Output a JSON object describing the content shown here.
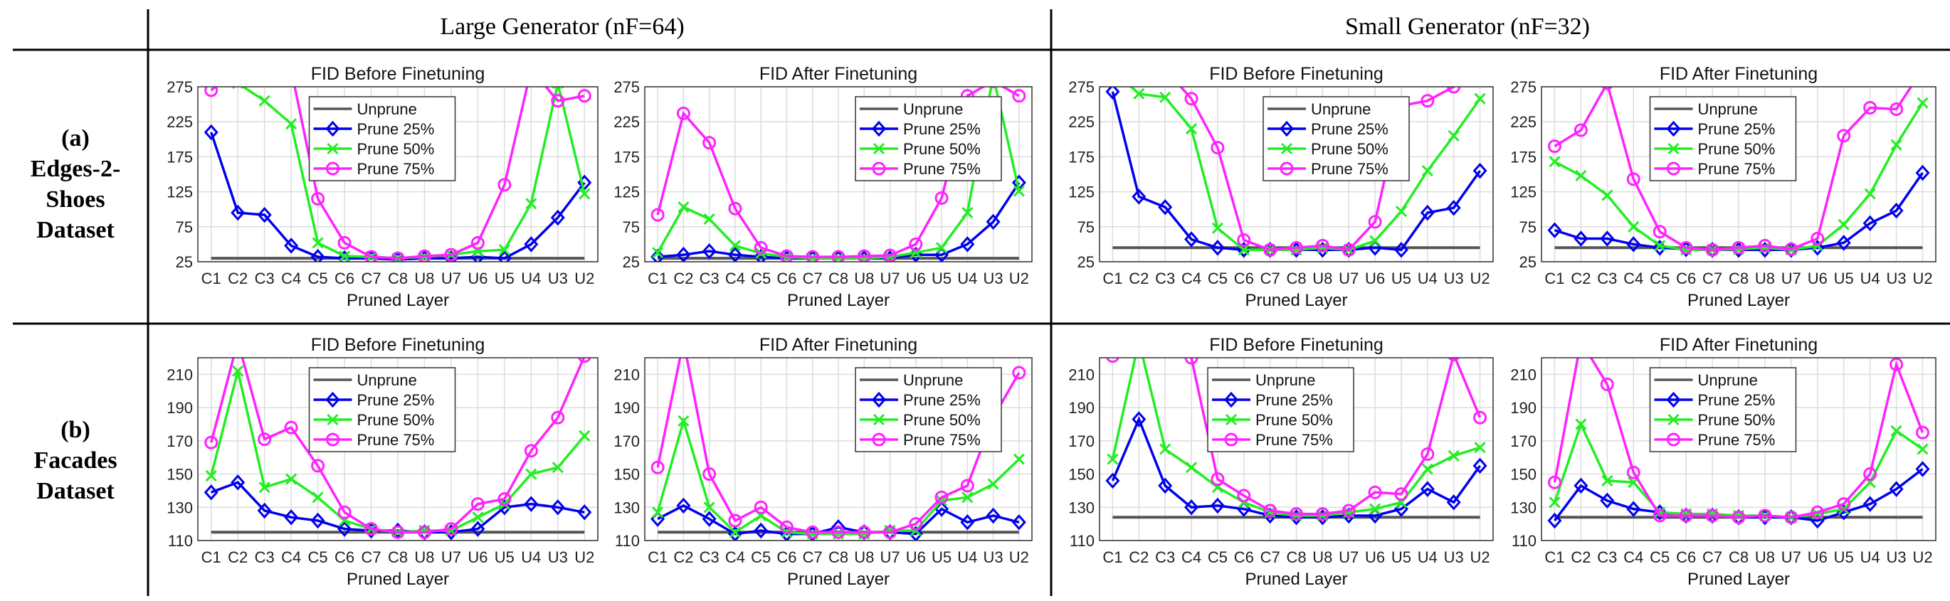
{
  "figure": {
    "columns": [
      {
        "label": "Large Generator (nF=64)"
      },
      {
        "label": "Small Generator (nF=32)"
      }
    ],
    "rows": [
      {
        "letter": "(a)",
        "lines": [
          "Edges-2-",
          "Shoes",
          "Dataset"
        ]
      },
      {
        "letter": "(b)",
        "lines": [
          "Facades",
          "Dataset"
        ]
      }
    ]
  },
  "colors": {
    "Unprune": "#555555",
    "Prune 25%": "#0000ee",
    "Prune 50%": "#22ee22",
    "Prune 75%": "#ff22ff",
    "grid": "#dddddd"
  },
  "chart_data": [
    {
      "id": "a-large-before",
      "type": "line",
      "title": "FID Before Finetuning",
      "xlabel": "Pruned Layer",
      "categories": [
        "C1",
        "C2",
        "C3",
        "C4",
        "C5",
        "C6",
        "C7",
        "C8",
        "U8",
        "U7",
        "U6",
        "U5",
        "U4",
        "U3",
        "U2"
      ],
      "ylim": [
        25,
        275
      ],
      "yticks": [
        25,
        75,
        125,
        175,
        225,
        275
      ],
      "legend": "top-center",
      "series": [
        {
          "name": "Unprune",
          "marker": "none",
          "values": [
            30,
            30,
            30,
            30,
            30,
            30,
            30,
            30,
            30,
            30,
            30,
            30,
            30,
            30,
            30
          ]
        },
        {
          "name": "Prune 25%",
          "marker": "diamond",
          "values": [
            210,
            95,
            92,
            48,
            32,
            30,
            30,
            28,
            30,
            30,
            32,
            30,
            50,
            88,
            138
          ]
        },
        {
          "name": "Prune 50%",
          "marker": "x",
          "values": [
            295,
            280,
            255,
            222,
            52,
            33,
            32,
            30,
            32,
            35,
            40,
            42,
            108,
            280,
            122
          ]
        },
        {
          "name": "Prune 75%",
          "marker": "circle",
          "values": [
            270,
            300,
            300,
            300,
            115,
            52,
            32,
            30,
            33,
            35,
            52,
            135,
            300,
            255,
            262
          ]
        }
      ]
    },
    {
      "id": "a-large-after",
      "type": "line",
      "title": "FID After Finetuning",
      "xlabel": "Pruned Layer",
      "categories": [
        "C1",
        "C2",
        "C3",
        "C4",
        "C5",
        "C6",
        "C7",
        "C8",
        "U8",
        "U7",
        "U6",
        "U5",
        "U4",
        "U3",
        "U2"
      ],
      "ylim": [
        25,
        275
      ],
      "yticks": [
        25,
        75,
        125,
        175,
        225,
        275
      ],
      "legend": "top-right",
      "series": [
        {
          "name": "Unprune",
          "marker": "none",
          "values": [
            30,
            30,
            30,
            30,
            30,
            30,
            30,
            30,
            30,
            30,
            30,
            30,
            30,
            30,
            30
          ]
        },
        {
          "name": "Prune 25%",
          "marker": "diamond",
          "values": [
            32,
            35,
            40,
            35,
            32,
            30,
            30,
            30,
            30,
            30,
            35,
            35,
            50,
            82,
            138
          ]
        },
        {
          "name": "Prune 50%",
          "marker": "x",
          "values": [
            38,
            103,
            86,
            48,
            37,
            32,
            30,
            30,
            30,
            32,
            38,
            45,
            95,
            290,
            126
          ]
        },
        {
          "name": "Prune 75%",
          "marker": "circle",
          "values": [
            92,
            237,
            195,
            101,
            45,
            33,
            32,
            32,
            33,
            34,
            50,
            116,
            262,
            283,
            262
          ]
        }
      ]
    },
    {
      "id": "a-small-before",
      "type": "line",
      "title": "FID Before Finetuning",
      "xlabel": "Pruned Layer",
      "categories": [
        "C1",
        "C2",
        "C3",
        "C4",
        "C5",
        "C6",
        "C7",
        "C8",
        "U8",
        "U7",
        "U6",
        "U5",
        "U4",
        "U3",
        "U2"
      ],
      "ylim": [
        25,
        275
      ],
      "yticks": [
        25,
        75,
        125,
        175,
        225,
        275
      ],
      "legend": "top-left",
      "series": [
        {
          "name": "Unprune",
          "marker": "none",
          "values": [
            45,
            45,
            45,
            45,
            45,
            45,
            45,
            45,
            45,
            45,
            45,
            45,
            45,
            45,
            45
          ]
        },
        {
          "name": "Prune 25%",
          "marker": "diamond",
          "values": [
            268,
            118,
            103,
            57,
            45,
            42,
            42,
            42,
            42,
            42,
            45,
            42,
            95,
            102,
            155
          ]
        },
        {
          "name": "Prune 50%",
          "marker": "x",
          "values": [
            298,
            265,
            260,
            215,
            73,
            42,
            42,
            42,
            45,
            42,
            55,
            97,
            155,
            205,
            258
          ]
        },
        {
          "name": "Prune 75%",
          "marker": "circle",
          "values": [
            300,
            300,
            300,
            258,
            188,
            56,
            42,
            45,
            48,
            42,
            82,
            248,
            255,
            275,
            300
          ]
        }
      ]
    },
    {
      "id": "a-small-after",
      "type": "line",
      "title": "FID After Finetuning",
      "xlabel": "Pruned Layer",
      "categories": [
        "C1",
        "C2",
        "C3",
        "C4",
        "C5",
        "C6",
        "C7",
        "C8",
        "U8",
        "U7",
        "U6",
        "U5",
        "U4",
        "U3",
        "U2"
      ],
      "ylim": [
        25,
        275
      ],
      "yticks": [
        25,
        75,
        125,
        175,
        225,
        275
      ],
      "legend": "top-center",
      "series": [
        {
          "name": "Unprune",
          "marker": "none",
          "values": [
            45,
            45,
            45,
            45,
            45,
            45,
            45,
            45,
            45,
            45,
            45,
            45,
            45,
            45,
            45
          ]
        },
        {
          "name": "Prune 25%",
          "marker": "diamond",
          "values": [
            70,
            58,
            58,
            50,
            45,
            43,
            42,
            42,
            42,
            42,
            45,
            52,
            80,
            98,
            152
          ]
        },
        {
          "name": "Prune 50%",
          "marker": "x",
          "values": [
            168,
            148,
            120,
            75,
            48,
            42,
            42,
            43,
            45,
            42,
            48,
            78,
            122,
            192,
            252
          ]
        },
        {
          "name": "Prune 75%",
          "marker": "circle",
          "values": [
            190,
            213,
            280,
            143,
            68,
            45,
            42,
            45,
            48,
            43,
            58,
            205,
            245,
            243,
            300
          ]
        }
      ]
    },
    {
      "id": "b-large-before",
      "type": "line",
      "title": "FID Before Finetuning",
      "xlabel": "Pruned Layer",
      "categories": [
        "C1",
        "C2",
        "C3",
        "C4",
        "C5",
        "C6",
        "C7",
        "C8",
        "U8",
        "U7",
        "U6",
        "U5",
        "U4",
        "U3",
        "U2"
      ],
      "ylim": [
        110,
        220
      ],
      "yticks": [
        110,
        130,
        150,
        170,
        190,
        210
      ],
      "legend": "top-center",
      "series": [
        {
          "name": "Unprune",
          "marker": "none",
          "values": [
            115,
            115,
            115,
            115,
            115,
            115,
            115,
            115,
            115,
            115,
            115,
            115,
            115,
            115,
            115
          ]
        },
        {
          "name": "Prune 25%",
          "marker": "diamond",
          "values": [
            139,
            145,
            128,
            124,
            122,
            117,
            116,
            116,
            115,
            115,
            117,
            130,
            132,
            130,
            127
          ]
        },
        {
          "name": "Prune 50%",
          "marker": "x",
          "values": [
            149,
            212,
            142,
            147,
            136,
            122,
            117,
            115,
            116,
            116,
            124,
            132,
            150,
            154,
            173
          ]
        },
        {
          "name": "Prune 75%",
          "marker": "circle",
          "values": [
            169,
            230,
            171,
            178,
            155,
            127,
            117,
            115,
            115,
            117,
            132,
            135,
            164,
            184,
            221
          ]
        }
      ]
    },
    {
      "id": "b-large-after",
      "type": "line",
      "title": "FID After Finetuning",
      "xlabel": "Pruned Layer",
      "categories": [
        "C1",
        "C2",
        "C3",
        "C4",
        "C5",
        "C6",
        "C7",
        "C8",
        "U8",
        "U7",
        "U6",
        "U5",
        "U4",
        "U3",
        "U2"
      ],
      "ylim": [
        110,
        220
      ],
      "yticks": [
        110,
        130,
        150,
        170,
        190,
        210
      ],
      "legend": "top-right",
      "series": [
        {
          "name": "Unprune",
          "marker": "none",
          "values": [
            115,
            115,
            115,
            115,
            115,
            115,
            115,
            115,
            115,
            115,
            115,
            115,
            115,
            115,
            115
          ]
        },
        {
          "name": "Prune 25%",
          "marker": "diamond",
          "values": [
            123,
            131,
            123,
            114,
            116,
            114,
            114,
            118,
            115,
            115,
            114,
            129,
            121,
            125,
            121
          ]
        },
        {
          "name": "Prune 50%",
          "marker": "x",
          "values": [
            127,
            182,
            130,
            115,
            125,
            115,
            114,
            114,
            114,
            116,
            116,
            134,
            136,
            144,
            159
          ]
        },
        {
          "name": "Prune 75%",
          "marker": "circle",
          "values": [
            154,
            230,
            150,
            122,
            130,
            118,
            115,
            115,
            115,
            115,
            120,
            136,
            143,
            184,
            211
          ]
        }
      ]
    },
    {
      "id": "b-small-before",
      "type": "line",
      "title": "FID Before Finetuning",
      "xlabel": "Pruned Layer",
      "categories": [
        "C1",
        "C2",
        "C3",
        "C4",
        "C5",
        "C6",
        "C7",
        "C8",
        "U8",
        "U7",
        "U6",
        "U5",
        "U4",
        "U3",
        "U2"
      ],
      "ylim": [
        110,
        220
      ],
      "yticks": [
        110,
        130,
        150,
        170,
        190,
        210
      ],
      "legend": "top-center",
      "series": [
        {
          "name": "Unprune",
          "marker": "none",
          "values": [
            124,
            124,
            124,
            124,
            124,
            124,
            124,
            124,
            124,
            124,
            124,
            124,
            124,
            124,
            124
          ]
        },
        {
          "name": "Prune 25%",
          "marker": "diamond",
          "values": [
            146,
            183,
            143,
            130,
            131,
            129,
            125,
            124,
            124,
            125,
            125,
            129,
            141,
            133,
            155
          ]
        },
        {
          "name": "Prune 50%",
          "marker": "x",
          "values": [
            159,
            230,
            165,
            154,
            142,
            133,
            127,
            125,
            125,
            127,
            129,
            133,
            153,
            161,
            166
          ]
        },
        {
          "name": "Prune 75%",
          "marker": "circle",
          "values": [
            221,
            230,
            230,
            220,
            147,
            137,
            128,
            126,
            126,
            128,
            139,
            138,
            162,
            222,
            184
          ]
        }
      ]
    },
    {
      "id": "b-small-after",
      "type": "line",
      "title": "FID After Finetuning",
      "xlabel": "Pruned Layer",
      "categories": [
        "C1",
        "C2",
        "C3",
        "C4",
        "C5",
        "C6",
        "C7",
        "C8",
        "U8",
        "U7",
        "U6",
        "U5",
        "U4",
        "U3",
        "U2"
      ],
      "ylim": [
        110,
        220
      ],
      "yticks": [
        110,
        130,
        150,
        170,
        190,
        210
      ],
      "legend": "top-center",
      "series": [
        {
          "name": "Unprune",
          "marker": "none",
          "values": [
            124,
            124,
            124,
            124,
            124,
            124,
            124,
            124,
            124,
            124,
            124,
            124,
            124,
            124,
            124
          ]
        },
        {
          "name": "Prune 25%",
          "marker": "diamond",
          "values": [
            122,
            143,
            134,
            129,
            127,
            125,
            125,
            124,
            124,
            124,
            122,
            127,
            132,
            141,
            153
          ]
        },
        {
          "name": "Prune 50%",
          "marker": "x",
          "values": [
            133,
            180,
            146,
            145,
            127,
            126,
            126,
            125,
            125,
            124,
            126,
            129,
            145,
            176,
            165
          ]
        },
        {
          "name": "Prune 75%",
          "marker": "circle",
          "values": [
            145,
            230,
            204,
            151,
            125,
            125,
            125,
            124,
            125,
            124,
            127,
            132,
            150,
            216,
            175
          ]
        }
      ]
    }
  ]
}
